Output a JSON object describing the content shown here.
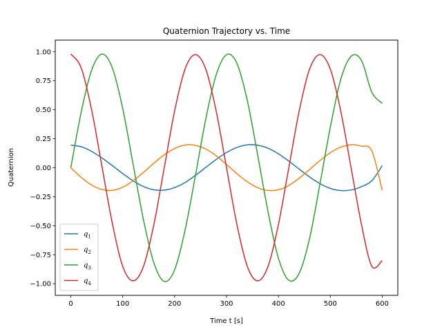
{
  "chart_data": {
    "type": "line",
    "title": "Quaternion Trajectory vs. Time",
    "xlabel": "Time t [s]",
    "ylabel": "Quaternion",
    "xlim": [
      -30,
      630
    ],
    "ylim": [
      -1.1,
      1.1
    ],
    "xticks": [
      0,
      100,
      200,
      300,
      400,
      500,
      600
    ],
    "yticks": [
      -1.0,
      -0.75,
      -0.5,
      -0.25,
      0.0,
      0.25,
      0.5,
      0.75,
      1.0
    ],
    "xtick_labels": [
      "0",
      "100",
      "200",
      "300",
      "400",
      "500",
      "600"
    ],
    "ytick_labels": [
      "−1.00",
      "−0.75",
      "−0.50",
      "−0.25",
      "0.00",
      "0.25",
      "0.50",
      "0.75",
      "1.00"
    ],
    "grid": false,
    "legend_position": "lower-left",
    "colors": [
      "#1f77b4",
      "#ff7f0e",
      "#2ca02c",
      "#d62728"
    ],
    "series": [
      {
        "name": "q1",
        "base": "q",
        "sub": "1",
        "color": "#1f77b4",
        "x": [
          0,
          20,
          40,
          60,
          80,
          100,
          120,
          140,
          160,
          180,
          200,
          220,
          240,
          260,
          280,
          300,
          320,
          340,
          360,
          380,
          400,
          420,
          440,
          460,
          480,
          500,
          520,
          540,
          560,
          580,
          600
        ],
        "y": [
          0.195,
          0.181,
          0.141,
          0.084,
          0.018,
          -0.05,
          -0.113,
          -0.162,
          -0.19,
          -0.193,
          -0.171,
          -0.128,
          -0.066,
          0.003,
          0.071,
          0.131,
          0.175,
          0.197,
          0.194,
          0.168,
          0.12,
          0.057,
          -0.012,
          -0.08,
          -0.137,
          -0.178,
          -0.197,
          -0.192,
          -0.163,
          -0.112,
          0.018
        ]
      },
      {
        "name": "q2",
        "base": "q",
        "sub": "2",
        "color": "#ff7f0e",
        "x": [
          0,
          20,
          40,
          60,
          80,
          100,
          120,
          140,
          160,
          180,
          200,
          220,
          240,
          260,
          280,
          300,
          320,
          340,
          360,
          380,
          400,
          420,
          440,
          460,
          480,
          500,
          520,
          540,
          560,
          580,
          600
        ],
        "y": [
          0.0,
          -0.083,
          -0.149,
          -0.188,
          -0.195,
          -0.168,
          -0.113,
          -0.04,
          0.039,
          0.111,
          0.166,
          0.195,
          0.193,
          0.161,
          0.103,
          0.028,
          -0.051,
          -0.121,
          -0.172,
          -0.196,
          -0.19,
          -0.153,
          -0.09,
          -0.016,
          0.062,
          0.13,
          0.177,
          0.197,
          0.186,
          0.145,
          -0.195
        ]
      },
      {
        "name": "q3",
        "base": "q",
        "sub": "3",
        "color": "#2ca02c",
        "x": [
          0,
          20,
          40,
          60,
          80,
          100,
          120,
          140,
          160,
          180,
          200,
          220,
          240,
          260,
          280,
          300,
          320,
          340,
          360,
          380,
          400,
          420,
          440,
          460,
          480,
          500,
          520,
          540,
          560,
          580,
          600
        ],
        "y": [
          0.0,
          0.48,
          0.84,
          0.98,
          0.86,
          0.51,
          0.03,
          -0.45,
          -0.82,
          -0.98,
          -0.88,
          -0.54,
          -0.07,
          0.42,
          0.8,
          0.975,
          0.9,
          0.58,
          0.11,
          -0.38,
          -0.78,
          -0.97,
          -0.91,
          -0.61,
          -0.14,
          0.35,
          0.76,
          0.96,
          0.925,
          0.65,
          0.555
        ]
      },
      {
        "name": "q4",
        "base": "q",
        "sub": "4",
        "color": "#d62728",
        "x": [
          0,
          20,
          40,
          60,
          80,
          100,
          120,
          140,
          160,
          180,
          200,
          220,
          240,
          260,
          280,
          300,
          320,
          340,
          360,
          380,
          400,
          420,
          440,
          460,
          480,
          500,
          520,
          540,
          560,
          580,
          600
        ],
        "y": [
          0.98,
          0.86,
          0.5,
          0.01,
          -0.48,
          -0.85,
          -0.975,
          -0.85,
          -0.49,
          0.0,
          0.49,
          0.85,
          0.975,
          0.85,
          0.49,
          0.0,
          -0.49,
          -0.85,
          -0.975,
          -0.85,
          -0.49,
          0.0,
          0.49,
          0.85,
          0.975,
          0.85,
          0.49,
          0.0,
          -0.49,
          -0.85,
          -0.8
        ]
      }
    ]
  }
}
